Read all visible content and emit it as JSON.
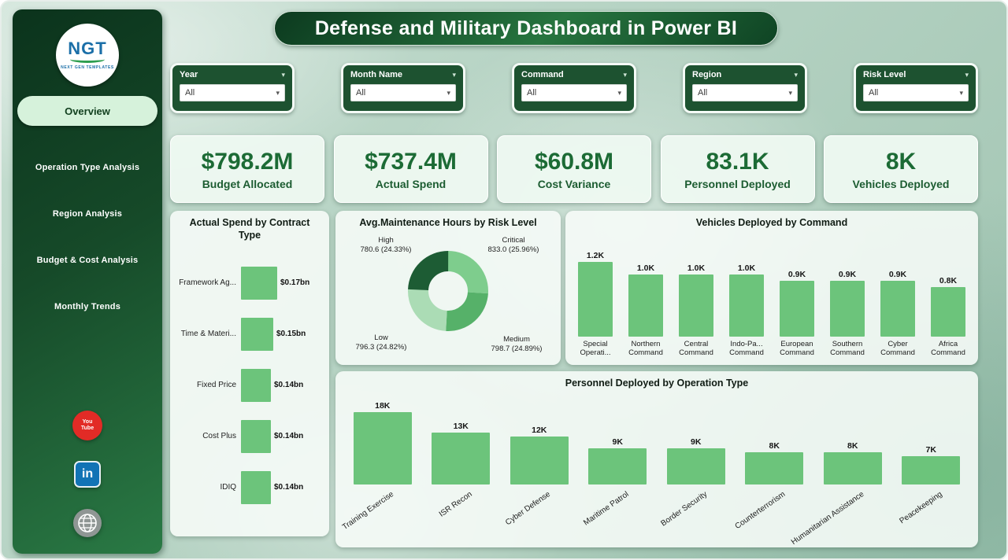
{
  "header": {
    "title": "Defense and Military Dashboard in Power BI"
  },
  "icons": {
    "chevron": "▾"
  },
  "colors": {
    "sidebar_dark": "#0b331c",
    "accent_green": "#2a7a45",
    "bar_green": "#6cc47b",
    "kpi_text": "#1c6b35",
    "active_pill": "#d6f2db",
    "youtube_red": "#e22b26",
    "linkedin_blue": "#1273b5"
  },
  "sidebar": {
    "logo": {
      "text": "NGT",
      "subtext": "NEXT GEN TEMPLATES"
    },
    "items": [
      {
        "label": "Overview",
        "active": true
      },
      {
        "label": "Operation Type Analysis",
        "active": false
      },
      {
        "label": "Region Analysis",
        "active": false
      },
      {
        "label": "Budget & Cost Analysis",
        "active": false
      },
      {
        "label": "Monthly Trends",
        "active": false
      }
    ],
    "social": {
      "youtube_label": "You\nTube",
      "linkedin_label": "in",
      "website": "globe"
    }
  },
  "filters": [
    {
      "label": "Year",
      "value": "All"
    },
    {
      "label": "Month Name",
      "value": "All"
    },
    {
      "label": "Command",
      "value": "All"
    },
    {
      "label": "Region",
      "value": "All"
    },
    {
      "label": "Risk Level",
      "value": "All"
    }
  ],
  "kpis": [
    {
      "value": "$798.2M",
      "label": "Budget Allocated"
    },
    {
      "value": "$737.4M",
      "label": "Actual Spend"
    },
    {
      "value": "$60.8M",
      "label": "Cost Variance"
    },
    {
      "value": "83.1K",
      "label": "Personnel Deployed"
    },
    {
      "value": "8K",
      "label": "Vehicles Deployed"
    }
  ],
  "chart_data": [
    {
      "type": "bar",
      "orientation": "horizontal",
      "title": "Actual Spend by Contract Type",
      "categories": [
        "Framework Ag...",
        "Time & Materi...",
        "Fixed Price",
        "Cost Plus",
        "IDIQ"
      ],
      "values": [
        0.17,
        0.15,
        0.14,
        0.14,
        0.14
      ],
      "labels": [
        "$0.17bn",
        "$0.15bn",
        "$0.14bn",
        "$0.14bn",
        "$0.14bn"
      ],
      "unit": "bn $",
      "color": "#6cc47b"
    },
    {
      "type": "pie",
      "subtype": "donut",
      "title": "Avg.Maintenance Hours by Risk Level",
      "slices": [
        {
          "label": "Critical",
          "value": 833.0,
          "pct": 25.96,
          "display": "833.0 (25.96%)",
          "color": "#7ecd8d"
        },
        {
          "label": "Medium",
          "value": 798.7,
          "pct": 24.89,
          "display": "798.7 (24.89%)",
          "color": "#56b169"
        },
        {
          "label": "Low",
          "value": 796.3,
          "pct": 24.82,
          "display": "796.3 (24.82%)",
          "color": "#abdcb5"
        },
        {
          "label": "High",
          "value": 780.6,
          "pct": 24.33,
          "display": "780.6 (24.33%)",
          "color": "#1d5c34"
        }
      ],
      "legend_position": "around-labels"
    },
    {
      "type": "bar",
      "orientation": "vertical",
      "title": "Vehicles Deployed by Command",
      "categories": [
        "Special\nOperati...",
        "Northern\nCommand",
        "Central\nCommand",
        "Indo-Pa...\nCommand",
        "European\nCommand",
        "Southern\nCommand",
        "Cyber\nCommand",
        "Africa\nCommand"
      ],
      "values": [
        1.2,
        1.0,
        1.0,
        1.0,
        0.9,
        0.9,
        0.9,
        0.8
      ],
      "labels": [
        "1.2K",
        "1.0K",
        "1.0K",
        "1.0K",
        "0.9K",
        "0.9K",
        "0.9K",
        "0.8K"
      ],
      "unit": "K vehicles",
      "color": "#6cc47b"
    },
    {
      "type": "bar",
      "orientation": "vertical",
      "title": "Personnel Deployed by Operation Type",
      "categories": [
        "Training Exercise",
        "ISR Recon",
        "Cyber Defense",
        "Maritime Patrol",
        "Border Security",
        "Counterterrorism",
        "Humanitarian Assistance",
        "Peacekeeping"
      ],
      "values": [
        18,
        13,
        12,
        9,
        9,
        8,
        8,
        7
      ],
      "labels": [
        "18K",
        "13K",
        "12K",
        "9K",
        "9K",
        "8K",
        "8K",
        "7K"
      ],
      "unit": "K personnel",
      "color": "#6cc47b"
    }
  ]
}
